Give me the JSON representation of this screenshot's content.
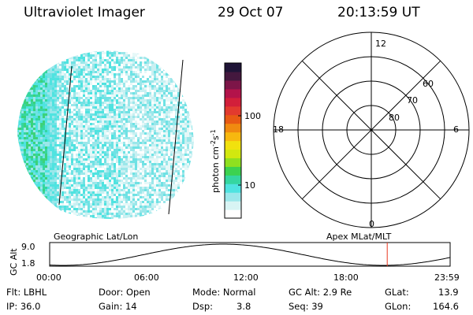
{
  "header": {
    "instrument": "Ultraviolet Imager",
    "date": "29 Oct 07",
    "time": "20:13:59 UT"
  },
  "colorbar": {
    "unit_label": "photon cm",
    "unit_sup1": "-2",
    "unit_mid": "s",
    "unit_sup2": "-1",
    "ticks": [
      "100",
      "10"
    ],
    "colors": [
      "#ffffff",
      "#d8f4f4",
      "#9be7ea",
      "#4fe3e0",
      "#35d6a0",
      "#3cd24f",
      "#8fe01f",
      "#d2e80f",
      "#f1e10e",
      "#f7b80f",
      "#f08a10",
      "#e85a14",
      "#e23a2e",
      "#d21f3a",
      "#b3134a",
      "#7d1548",
      "#44183e",
      "#1f1437"
    ]
  },
  "polar": {
    "mlt_labels": [
      "12",
      "18",
      "6",
      "0"
    ],
    "lat_labels": [
      "60",
      "70",
      "80"
    ]
  },
  "orbit": {
    "left_caption": "Geographic Lat/Lon",
    "right_caption": "Apex MLat/MLT",
    "ylabel": "GC Alt",
    "ytick_max": "9.0",
    "ytick_min": "1.8",
    "xticks": [
      "00:00",
      "06:00",
      "12:00",
      "18:00",
      "23:59"
    ],
    "marker_hour": 20.23
  },
  "info": {
    "flt": "Flt: LBHL",
    "ip": "IP: 36.0",
    "door": "Door: Open",
    "gain": "Gain: 14",
    "mode": "Mode: Normal",
    "dsp_label": "Dsp:",
    "dsp_value": "3.8",
    "gcalt": "GC Alt: 2.9 Re",
    "seq": "Seq: 39",
    "glat_label": "GLat:",
    "glat_value": "13.9",
    "glon_label": "GLon:",
    "glon_value": "164.6"
  },
  "icons": {
    "image": "auroral-image-disk",
    "grid": "polar-grid-icon"
  }
}
